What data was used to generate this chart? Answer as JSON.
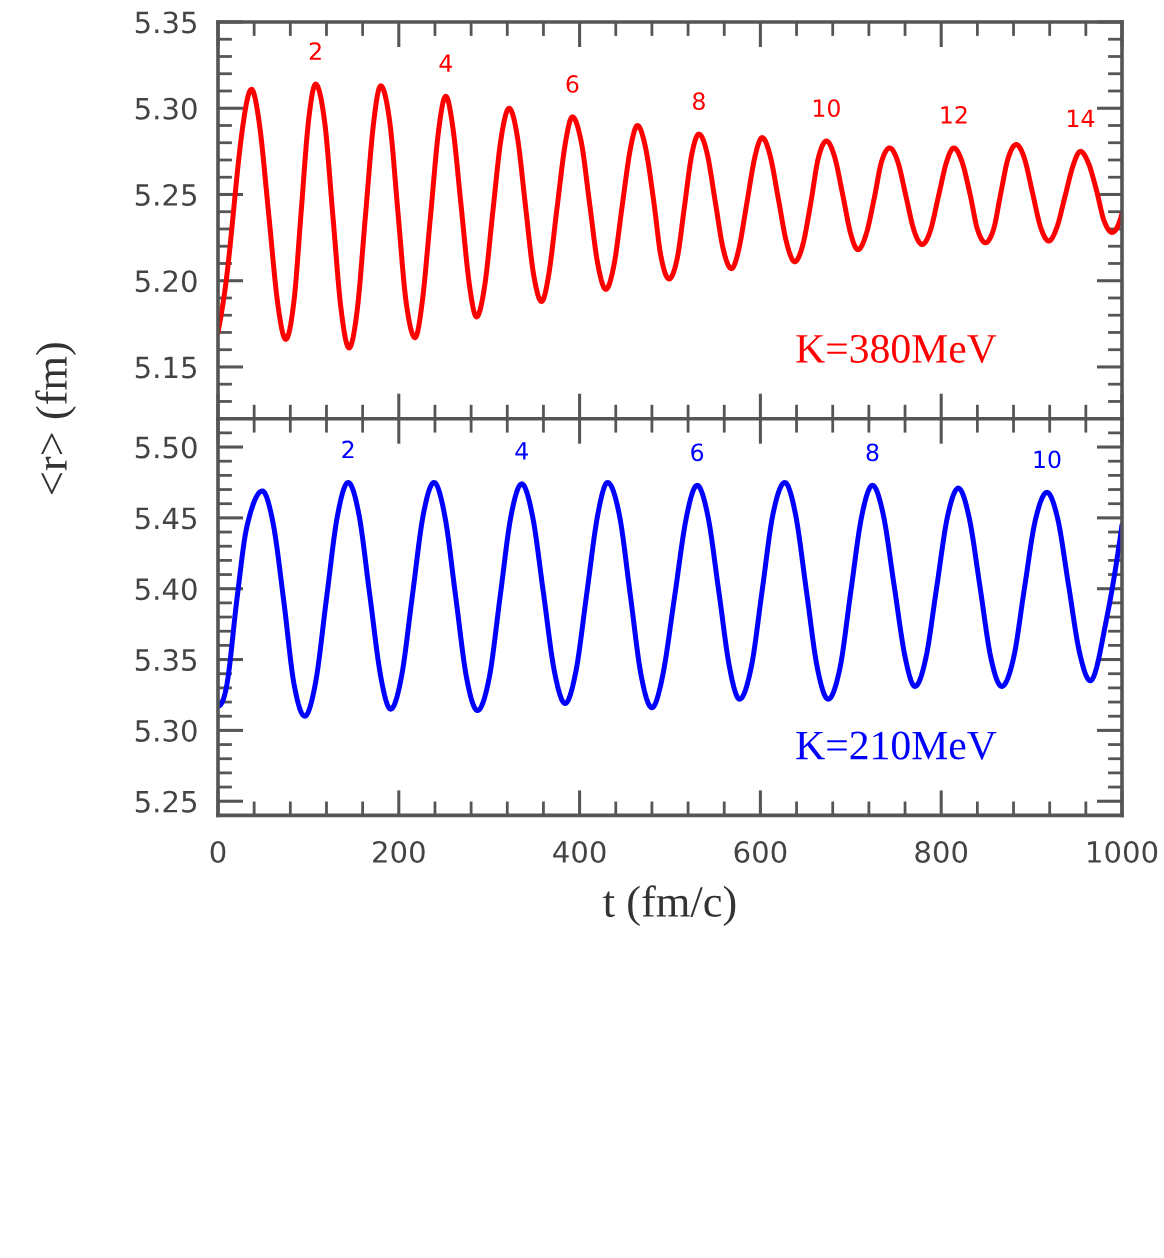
{
  "chart_data": [
    {
      "type": "line",
      "ylabel": "<r> (fm)",
      "xlim": [
        0,
        1000
      ],
      "xticks": [
        0,
        200,
        400,
        600,
        800,
        1000
      ],
      "ylim": [
        5.12,
        5.35
      ],
      "yticks": [
        5.15,
        {
          "value": 5.2,
          "label": "5.20"
        },
        5.25,
        {
          "value": 5.3,
          "label": "5.30"
        },
        5.35
      ],
      "tick_labels": "y",
      "grid": false,
      "legend": false,
      "marker": "none",
      "line_style": "solid",
      "series": [
        {
          "name": "K=380MeV",
          "color": "#ff0000",
          "x": [
            0,
            10,
            26,
            37,
            46,
            56,
            66,
            75,
            84,
            92,
            100,
            108,
            118,
            127,
            136,
            145,
            154,
            163,
            172,
            180,
            190,
            199,
            208,
            218,
            226,
            235,
            244,
            252,
            260,
            269,
            278,
            286,
            295,
            304,
            313,
            322,
            331,
            340,
            349,
            358,
            366,
            375,
            384,
            392,
            402,
            411,
            420,
            429,
            438,
            447,
            456,
            464,
            473,
            482,
            490,
            499,
            508,
            516,
            524,
            532,
            541,
            550,
            559,
            568,
            576,
            585,
            594,
            602,
            611,
            620,
            629,
            638,
            647,
            656,
            664,
            673,
            682,
            691,
            700,
            708,
            717,
            726,
            734,
            743,
            752,
            761,
            770,
            779,
            788,
            797,
            806,
            814,
            823,
            832,
            840,
            849,
            858,
            866,
            874,
            883,
            892,
            901,
            910,
            919,
            928,
            937,
            946,
            954,
            963,
            972,
            980,
            989,
            1000
          ],
          "values": [
            5.17,
            5.204,
            5.284,
            5.311,
            5.29,
            5.239,
            5.187,
            5.166,
            5.188,
            5.24,
            5.292,
            5.314,
            5.292,
            5.238,
            5.184,
            5.161,
            5.183,
            5.237,
            5.291,
            5.313,
            5.292,
            5.24,
            5.188,
            5.167,
            5.188,
            5.237,
            5.287,
            5.307,
            5.288,
            5.243,
            5.198,
            5.179,
            5.197,
            5.24,
            5.282,
            5.3,
            5.284,
            5.244,
            5.204,
            5.188,
            5.204,
            5.242,
            5.279,
            5.295,
            5.28,
            5.245,
            5.21,
            5.195,
            5.209,
            5.243,
            5.276,
            5.29,
            5.277,
            5.246,
            5.214,
            5.201,
            5.213,
            5.243,
            5.273,
            5.285,
            5.274,
            5.246,
            5.218,
            5.207,
            5.218,
            5.245,
            5.272,
            5.283,
            5.272,
            5.247,
            5.222,
            5.211,
            5.221,
            5.246,
            5.271,
            5.281,
            5.272,
            5.25,
            5.227,
            5.218,
            5.227,
            5.248,
            5.269,
            5.277,
            5.269,
            5.249,
            5.229,
            5.221,
            5.229,
            5.249,
            5.269,
            5.277,
            5.269,
            5.25,
            5.23,
            5.222,
            5.23,
            5.251,
            5.271,
            5.279,
            5.271,
            5.251,
            5.231,
            5.223,
            5.231,
            5.249,
            5.267,
            5.275,
            5.268,
            5.252,
            5.235,
            5.228,
            5.239
          ]
        }
      ],
      "annotations": [
        {
          "text": "2",
          "x": 108,
          "y": 5.314
        },
        {
          "text": "4",
          "x": 252,
          "y": 5.307
        },
        {
          "text": "6",
          "x": 392,
          "y": 5.295
        },
        {
          "text": "8",
          "x": 532,
          "y": 5.285
        },
        {
          "text": "10",
          "x": 673,
          "y": 5.281
        },
        {
          "text": "12",
          "x": 814,
          "y": 5.277
        },
        {
          "text": "14",
          "x": 954,
          "y": 5.275
        }
      ]
    },
    {
      "type": "line",
      "xlabel": "t (fm/c)",
      "xlim": [
        0,
        1000
      ],
      "xticks": [
        0,
        200,
        400,
        600,
        800,
        1000
      ],
      "ylim": [
        5.24,
        5.52
      ],
      "yticks": [
        5.25,
        {
          "value": 5.3,
          "label": "5.30"
        },
        5.35,
        {
          "value": 5.4,
          "label": "5.40"
        },
        5.45,
        {
          "value": 5.5,
          "label": "5.50"
        }
      ],
      "grid": false,
      "legend": false,
      "marker": "none",
      "line_style": "solid",
      "series": [
        {
          "name": "K=210MeV",
          "color": "#0000ff",
          "x": [
            0,
            10,
            21,
            32,
            49,
            61,
            73,
            84,
            96,
            108,
            120,
            132,
            144,
            156,
            168,
            180,
            191,
            203,
            215,
            227,
            239,
            251,
            263,
            275,
            287,
            300,
            312,
            324,
            336,
            348,
            360,
            372,
            384,
            396,
            408,
            420,
            431,
            444,
            456,
            468,
            480,
            492,
            505,
            518,
            530,
            542,
            554,
            566,
            577,
            590,
            602,
            614,
            627,
            639,
            651,
            663,
            675,
            688,
            700,
            712,
            724,
            736,
            748,
            760,
            771,
            783,
            795,
            807,
            819,
            831,
            843,
            855,
            867,
            880,
            892,
            904,
            917,
            929,
            941,
            953,
            965,
            983,
            1000
          ],
          "values": [
            5.317,
            5.333,
            5.393,
            5.444,
            5.469,
            5.446,
            5.39,
            5.333,
            5.31,
            5.334,
            5.393,
            5.451,
            5.475,
            5.452,
            5.395,
            5.338,
            5.315,
            5.338,
            5.395,
            5.452,
            5.475,
            5.451,
            5.394,
            5.337,
            5.314,
            5.337,
            5.394,
            5.451,
            5.474,
            5.451,
            5.397,
            5.342,
            5.319,
            5.342,
            5.397,
            5.452,
            5.475,
            5.452,
            5.396,
            5.339,
            5.316,
            5.339,
            5.394,
            5.45,
            5.473,
            5.451,
            5.398,
            5.344,
            5.322,
            5.345,
            5.399,
            5.453,
            5.475,
            5.452,
            5.398,
            5.344,
            5.322,
            5.344,
            5.398,
            5.451,
            5.473,
            5.452,
            5.402,
            5.352,
            5.331,
            5.351,
            5.401,
            5.451,
            5.471,
            5.45,
            5.401,
            5.351,
            5.331,
            5.351,
            5.4,
            5.448,
            5.468,
            5.449,
            5.402,
            5.355,
            5.335,
            5.379,
            5.445
          ]
        }
      ],
      "annotations": [
        {
          "text": "2",
          "x": 144,
          "y": 5.475
        },
        {
          "text": "4",
          "x": 336,
          "y": 5.474
        },
        {
          "text": "6",
          "x": 530,
          "y": 5.473
        },
        {
          "text": "8",
          "x": 724,
          "y": 5.473
        },
        {
          "text": "10",
          "x": 917,
          "y": 5.468
        }
      ]
    }
  ]
}
